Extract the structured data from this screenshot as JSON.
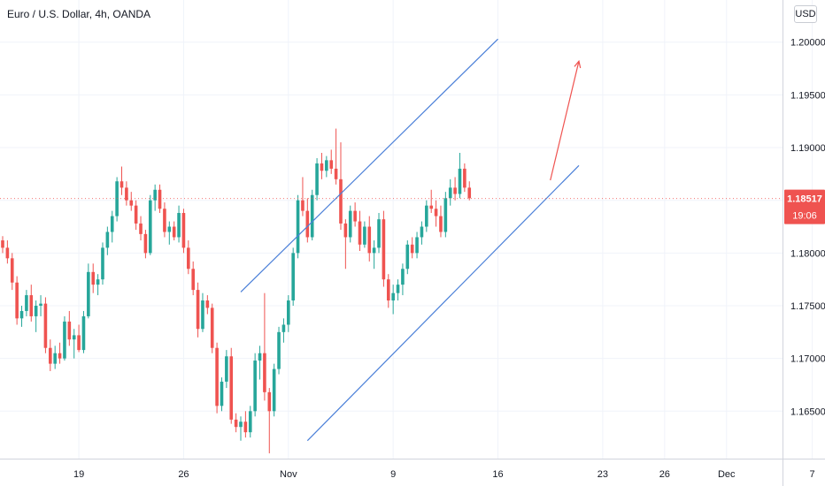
{
  "header": {
    "title": "Euro / U.S. Dollar, 4h, OANDA",
    "currency_button": "USD"
  },
  "price_badge": {
    "price": "1.18517",
    "countdown": "19:06",
    "color": "#ef5350"
  },
  "chart_data": {
    "type": "candlestick",
    "title": "Euro / U.S. Dollar, 4h, OANDA",
    "y_ticks": [
      "1.20000",
      "1.19500",
      "1.19000",
      "1.18500",
      "1.18000",
      "1.17500",
      "1.17000",
      "1.16500"
    ],
    "y_tick_values": [
      1.2,
      1.195,
      1.19,
      1.185,
      1.18,
      1.175,
      1.17,
      1.165
    ],
    "ylim": [
      1.1605,
      1.204
    ],
    "x_ticks": [
      "19",
      "26",
      "Nov",
      "9",
      "16",
      "23",
      "26",
      "Dec",
      "7"
    ],
    "x_tick_index": [
      16,
      38,
      60,
      82,
      104,
      126,
      139,
      152,
      170
    ],
    "grid": true,
    "colors": {
      "up": "#26a69a",
      "down": "#ef5350",
      "trendline": "#4a7fd8",
      "arrow": "#ef5350"
    },
    "last_price": 1.18517,
    "trend_channel": {
      "upper": [
        [
          50,
          1.1763
        ],
        [
          104,
          1.2003
        ]
      ],
      "lower": [
        [
          64,
          1.1622
        ],
        [
          121,
          1.1883
        ]
      ]
    },
    "arrow": {
      "from": [
        115,
        1.1869
      ],
      "to": [
        121,
        1.1982
      ]
    },
    "candles": [
      [
        1.1812,
        1.1816,
        1.18,
        1.1805
      ],
      [
        1.1805,
        1.1812,
        1.179,
        1.1795
      ],
      [
        1.1795,
        1.18,
        1.1765,
        1.1772
      ],
      [
        1.1772,
        1.1778,
        1.1732,
        1.1738
      ],
      [
        1.1738,
        1.175,
        1.173,
        1.1745
      ],
      [
        1.1745,
        1.1765,
        1.174,
        1.176
      ],
      [
        1.176,
        1.177,
        1.1735,
        1.174
      ],
      [
        1.174,
        1.1755,
        1.1725,
        1.175
      ],
      [
        1.175,
        1.176,
        1.174,
        1.1752
      ],
      [
        1.1752,
        1.1758,
        1.1705,
        1.171
      ],
      [
        1.171,
        1.1718,
        1.1688,
        1.1695
      ],
      [
        1.1695,
        1.1712,
        1.169,
        1.1705
      ],
      [
        1.1705,
        1.1715,
        1.1695,
        1.17
      ],
      [
        1.17,
        1.174,
        1.1698,
        1.1735
      ],
      [
        1.1735,
        1.1745,
        1.1712,
        1.1718
      ],
      [
        1.1718,
        1.1728,
        1.17,
        1.1722
      ],
      [
        1.1722,
        1.1732,
        1.1706,
        1.1708
      ],
      [
        1.1708,
        1.1745,
        1.1705,
        1.174
      ],
      [
        1.174,
        1.179,
        1.1738,
        1.1782
      ],
      [
        1.1782,
        1.179,
        1.1762,
        1.177
      ],
      [
        1.177,
        1.178,
        1.176,
        1.1775
      ],
      [
        1.1775,
        1.181,
        1.177,
        1.1805
      ],
      [
        1.1805,
        1.1825,
        1.1798,
        1.182
      ],
      [
        1.182,
        1.184,
        1.181,
        1.1835
      ],
      [
        1.1835,
        1.1872,
        1.183,
        1.1868
      ],
      [
        1.1868,
        1.1882,
        1.1855,
        1.1862
      ],
      [
        1.1862,
        1.1868,
        1.1845,
        1.185
      ],
      [
        1.185,
        1.1858,
        1.184,
        1.1845
      ],
      [
        1.1845,
        1.185,
        1.1822,
        1.1828
      ],
      [
        1.1828,
        1.1835,
        1.1812,
        1.1818
      ],
      [
        1.1818,
        1.1822,
        1.1795,
        1.18
      ],
      [
        1.18,
        1.1855,
        1.1798,
        1.185
      ],
      [
        1.185,
        1.1865,
        1.184,
        1.186
      ],
      [
        1.186,
        1.1865,
        1.1838,
        1.1842
      ],
      [
        1.1842,
        1.1848,
        1.1815,
        1.182
      ],
      [
        1.182,
        1.183,
        1.1808,
        1.1825
      ],
      [
        1.1825,
        1.183,
        1.1812,
        1.1815
      ],
      [
        1.1815,
        1.1845,
        1.181,
        1.1838
      ],
      [
        1.1838,
        1.1842,
        1.18,
        1.1805
      ],
      [
        1.1805,
        1.1812,
        1.178,
        1.1785
      ],
      [
        1.1785,
        1.1792,
        1.176,
        1.1765
      ],
      [
        1.1765,
        1.1772,
        1.172,
        1.1728
      ],
      [
        1.1728,
        1.1762,
        1.1725,
        1.1755
      ],
      [
        1.1755,
        1.176,
        1.1742,
        1.1748
      ],
      [
        1.1748,
        1.1752,
        1.1705,
        1.171
      ],
      [
        1.171,
        1.1715,
        1.1648,
        1.1655
      ],
      [
        1.1655,
        1.1682,
        1.165,
        1.1678
      ],
      [
        1.1678,
        1.1708,
        1.1672,
        1.1702
      ],
      [
        1.1702,
        1.171,
        1.1638,
        1.1642
      ],
      [
        1.1642,
        1.1648,
        1.163,
        1.1635
      ],
      [
        1.1635,
        1.1645,
        1.1622,
        1.164
      ],
      [
        1.164,
        1.165,
        1.1625,
        1.163
      ],
      [
        1.163,
        1.1655,
        1.1625,
        1.165
      ],
      [
        1.165,
        1.1705,
        1.1645,
        1.1698
      ],
      [
        1.1698,
        1.1712,
        1.168,
        1.1705
      ],
      [
        1.1705,
        1.1762,
        1.166,
        1.1668
      ],
      [
        1.1668,
        1.1672,
        1.161,
        1.165
      ],
      [
        1.165,
        1.1695,
        1.1645,
        1.169
      ],
      [
        1.169,
        1.173,
        1.1685,
        1.1725
      ],
      [
        1.1725,
        1.1738,
        1.1715,
        1.1732
      ],
      [
        1.1732,
        1.176,
        1.1725,
        1.1755
      ],
      [
        1.1755,
        1.1805,
        1.175,
        1.18
      ],
      [
        1.18,
        1.1855,
        1.1795,
        1.185
      ],
      [
        1.185,
        1.1872,
        1.1835,
        1.184
      ],
      [
        1.184,
        1.1852,
        1.181,
        1.1815
      ],
      [
        1.1815,
        1.186,
        1.1812,
        1.1855
      ],
      [
        1.1855,
        1.189,
        1.185,
        1.1885
      ],
      [
        1.1885,
        1.1895,
        1.187,
        1.1878
      ],
      [
        1.1878,
        1.1892,
        1.1872,
        1.1888
      ],
      [
        1.1888,
        1.1898,
        1.1875,
        1.188
      ],
      [
        1.188,
        1.1918,
        1.1865,
        1.187
      ],
      [
        1.187,
        1.1905,
        1.1822,
        1.1828
      ],
      [
        1.1828,
        1.1832,
        1.1785,
        1.1815
      ],
      [
        1.1815,
        1.1845,
        1.181,
        1.184
      ],
      [
        1.184,
        1.1848,
        1.1825,
        1.183
      ],
      [
        1.183,
        1.184,
        1.1802,
        1.1808
      ],
      [
        1.1808,
        1.183,
        1.1805,
        1.1825
      ],
      [
        1.1825,
        1.1835,
        1.1792,
        1.18
      ],
      [
        1.18,
        1.1812,
        1.1785,
        1.1805
      ],
      [
        1.1805,
        1.1838,
        1.18,
        1.1832
      ],
      [
        1.1832,
        1.184,
        1.1768,
        1.1775
      ],
      [
        1.1775,
        1.178,
        1.1748,
        1.1755
      ],
      [
        1.1755,
        1.177,
        1.1742,
        1.1762
      ],
      [
        1.1762,
        1.1775,
        1.1755,
        1.177
      ],
      [
        1.177,
        1.179,
        1.176,
        1.1785
      ],
      [
        1.1785,
        1.1812,
        1.178,
        1.1808
      ],
      [
        1.1808,
        1.1815,
        1.1795,
        1.18
      ],
      [
        1.18,
        1.182,
        1.1795,
        1.1815
      ],
      [
        1.1815,
        1.183,
        1.1808,
        1.1825
      ],
      [
        1.1825,
        1.185,
        1.182,
        1.1845
      ],
      [
        1.1845,
        1.186,
        1.1838,
        1.1842
      ],
      [
        1.1842,
        1.185,
        1.1825,
        1.1835
      ],
      [
        1.1835,
        1.1845,
        1.1815,
        1.182
      ],
      [
        1.182,
        1.1858,
        1.1815,
        1.1852
      ],
      [
        1.1852,
        1.187,
        1.1845,
        1.1862
      ],
      [
        1.1862,
        1.1872,
        1.185,
        1.1856
      ],
      [
        1.1856,
        1.1895,
        1.1852,
        1.188
      ],
      [
        1.188,
        1.1885,
        1.1858,
        1.1862
      ],
      [
        1.1862,
        1.1868,
        1.185,
        1.1852
      ]
    ]
  }
}
